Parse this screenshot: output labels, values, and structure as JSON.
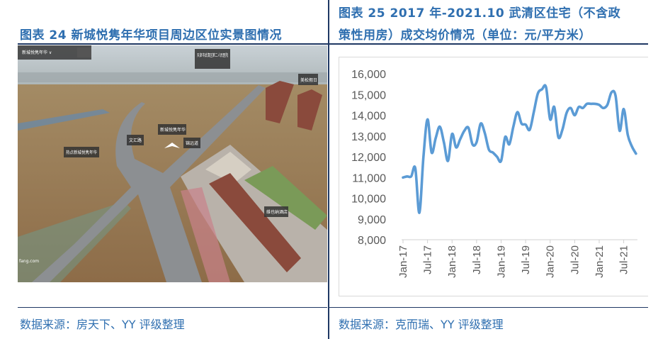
{
  "left": {
    "title": "图表 24 新城悦隽年华项目周边区位实景图情况",
    "source": "数据来源：房天下、YY 评级整理",
    "photo_labels": {
      "project_menu": "新城悦隽年华 ∨",
      "hospital": "天津市武清区第二人民医院",
      "top_right": "美松假日",
      "project": "新城悦隽年华",
      "road1": "文汇路",
      "road2": "锦远道",
      "hotspot": "热点新城悦隽年华",
      "hotel": "维也纳酒店",
      "watermark": "fang.com"
    }
  },
  "right": {
    "title_line1": "图表 25 2017 年-2021.10 武清区住宅（不含政",
    "title_line2": "策性用房）成交均价情况（单位：元/平方米）",
    "source": "数据来源：克而瑞、YY 评级整理"
  },
  "chart_data": {
    "type": "line",
    "title": "",
    "xlabel": "",
    "ylabel": "",
    "ylim": [
      8000,
      16000
    ],
    "yticks": [
      "16,000",
      "15,000",
      "14,000",
      "13,000",
      "12,000",
      "11,000",
      "10,000",
      "9,000",
      "8,000"
    ],
    "xticks": [
      "Jan-17",
      "Jul-17",
      "Jan-18",
      "Jul-18",
      "Jan-19",
      "Jul-19",
      "Jan-20",
      "Jul-20",
      "Jan-21",
      "Jul-21"
    ],
    "x_start": "2017-01",
    "x_end": "2021-10",
    "frequency": "monthly",
    "grid": false,
    "legend": "none",
    "color": "#5b9bd5",
    "values": [
      11000,
      11050,
      11050,
      11450,
      9300,
      12000,
      13800,
      12200,
      12900,
      13450,
      12700,
      11800,
      13100,
      12450,
      12850,
      13250,
      13400,
      12600,
      12700,
      13600,
      13150,
      12350,
      12200,
      12000,
      11800,
      12950,
      12600,
      13450,
      14150,
      13600,
      13550,
      13300,
      14150,
      15050,
      15250,
      15350,
      13800,
      14400,
      12950,
      13300,
      14100,
      14350,
      14000,
      14400,
      14350,
      14550,
      14550,
      14550,
      14500,
      14350,
      14500,
      15100,
      14950,
      13250,
      14300,
      13050,
      12500,
      12150
    ]
  }
}
